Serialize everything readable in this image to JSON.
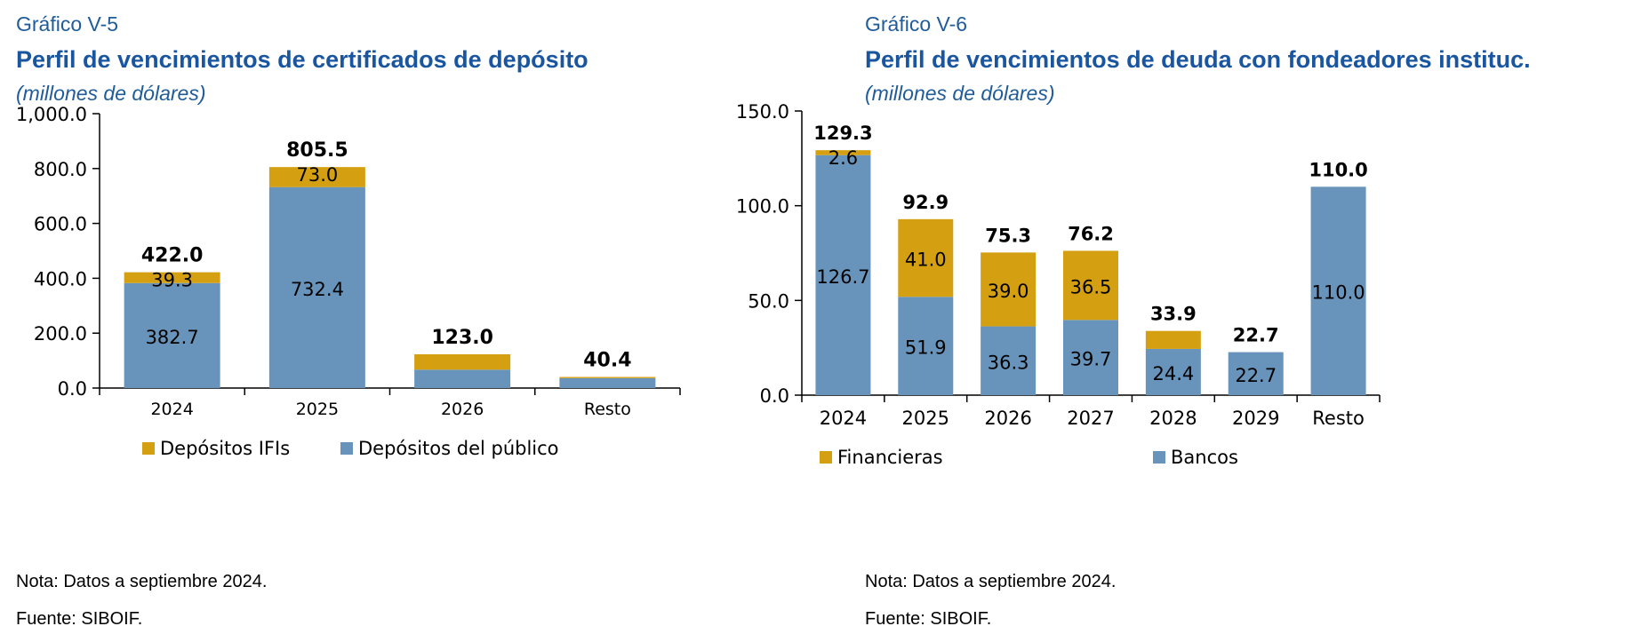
{
  "colors": {
    "gold": "#d4a012",
    "blue": "#6894bb",
    "axis": "#000000",
    "title": "#1a56a0"
  },
  "charts": [
    {
      "number": "Gráfico V-5",
      "title": "Perfil de vencimientos de certificados de depósito",
      "unit": "(millones de dólares)",
      "note": "Nota: Datos a septiembre 2024.",
      "source": "Fuente: SIBOIF.",
      "chart_data": {
        "type": "bar",
        "stacked": true,
        "categories": [
          "2024",
          "2025",
          "2026",
          "Resto"
        ],
        "ylim": [
          0,
          1000
        ],
        "yticks": [
          "1,000.0",
          "800.0",
          "600.0",
          "400.0",
          "200.0",
          "0.0"
        ],
        "yticks_values": [
          1000,
          800,
          600,
          400,
          200,
          0
        ],
        "series": [
          {
            "name": "Depósitos del público",
            "color": "#6894bb",
            "values": [
              382.7,
              732.4,
              67.0,
              36.0
            ],
            "labels": [
              "382.7",
              "732.4",
              "",
              ""
            ]
          },
          {
            "name": "Depósitos IFIs",
            "color": "#d4a012",
            "values": [
              39.3,
              73.0,
              56.0,
              4.4
            ],
            "labels": [
              "39.3",
              "73.0",
              "",
              ""
            ]
          }
        ],
        "totals": [
          "422.0",
          "805.5",
          "123.0",
          "40.4"
        ],
        "legend": [
          {
            "name": "Depósitos IFIs",
            "color": "#d4a012"
          },
          {
            "name": "Depósitos del público",
            "color": "#6894bb"
          }
        ]
      }
    },
    {
      "number": "Gráfico V-6",
      "title": "Perfil de vencimientos de deuda con fondeadores instituc.",
      "unit": "(millones de dólares)",
      "note": "Nota: Datos a septiembre 2024.",
      "source": "Fuente: SIBOIF.",
      "chart_data": {
        "type": "bar",
        "stacked": true,
        "categories": [
          "2024",
          "2025",
          "2026",
          "2027",
          "2028",
          "2029",
          "Resto"
        ],
        "ylim": [
          0,
          150
        ],
        "yticks": [
          "150.0",
          "100.0",
          "50.0",
          "0.0"
        ],
        "yticks_values": [
          150,
          100,
          50,
          0
        ],
        "series": [
          {
            "name": "Bancos",
            "color": "#6894bb",
            "values": [
              126.7,
              51.9,
              36.3,
              39.7,
              24.4,
              22.7,
              110.0
            ],
            "labels": [
              "126.7",
              "51.9",
              "36.3",
              "39.7",
              "24.4",
              "22.7",
              "110.0"
            ]
          },
          {
            "name": "Financieras",
            "color": "#d4a012",
            "values": [
              2.6,
              41.0,
              39.0,
              36.5,
              9.5,
              0,
              0
            ],
            "labels": [
              "2.6",
              "41.0",
              "39.0",
              "36.5",
              "",
              "",
              ""
            ]
          }
        ],
        "totals": [
          "129.3",
          "92.9",
          "75.3",
          "76.2",
          "33.9",
          "22.7",
          "110.0"
        ],
        "legend": [
          {
            "name": "Financieras",
            "color": "#d4a012"
          },
          {
            "name": "Bancos",
            "color": "#6894bb"
          }
        ]
      }
    }
  ]
}
